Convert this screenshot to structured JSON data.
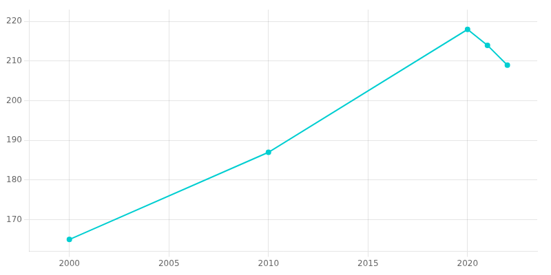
{
  "chart_data": {
    "type": "line",
    "x": [
      2000,
      2010,
      2020,
      2021,
      2022
    ],
    "values": [
      165,
      187,
      218,
      214,
      209
    ],
    "color": "#00CED1",
    "marker": "circle",
    "xlim": [
      1998.0,
      2023.5
    ],
    "ylim": [
      162,
      223
    ],
    "xticks": [
      2000,
      2005,
      2010,
      2015,
      2020
    ],
    "yticks": [
      170,
      180,
      190,
      200,
      210,
      220
    ],
    "grid": true
  }
}
